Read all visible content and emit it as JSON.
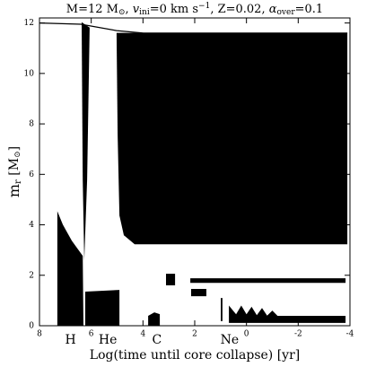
{
  "chart_data": {
    "type": "kippenhahn",
    "title": [
      "M=12 M",
      "⊙",
      ", ",
      "v",
      "ini",
      "=0 km s",
      "−1",
      ", Z=0.02, ",
      "α",
      "over",
      "=0.1"
    ],
    "y_label": [
      "m",
      "r",
      " [M",
      "⊙",
      "]"
    ],
    "x_label": "Log(time until core collapse) [yr]",
    "xlim": [
      8,
      -4
    ],
    "ylim": [
      0,
      12.2
    ],
    "xticks": [
      8,
      6,
      4,
      2,
      0,
      -2,
      -4
    ],
    "yticks": [
      0,
      2,
      4,
      6,
      8,
      10,
      12
    ],
    "color": "#000000",
    "phase_labels": [
      {
        "text": "H",
        "x": 6.8
      },
      {
        "text": "He",
        "x": 5.36
      },
      {
        "text": "C",
        "x": 3.46
      },
      {
        "text": "Ne",
        "x": 0.65
      }
    ],
    "mass_line": {
      "x": [
        8,
        6.4,
        5.02,
        3.98,
        -3.9
      ],
      "y": [
        12.0,
        11.95,
        11.7,
        11.6,
        11.6
      ]
    },
    "regions": [
      {
        "x": [
          5.02,
          -3.9,
          -3.9,
          4.32,
          4.74,
          4.91,
          4.98
        ],
        "y": [
          11.61,
          11.61,
          3.23,
          3.23,
          3.59,
          4.37,
          7.56
        ]
      },
      {
        "x": [
          6.37,
          6.06,
          6.16,
          6.27,
          6.33
        ],
        "y": [
          12.03,
          11.82,
          5.79,
          2.59,
          5.79
        ]
      },
      {
        "x": [
          7.31,
          7.1,
          6.75,
          6.33,
          6.3,
          7.31
        ],
        "y": [
          4.54,
          4.01,
          3.37,
          2.77,
          0,
          0
        ]
      },
      {
        "x": [
          6.23,
          4.91,
          4.91,
          6.23
        ],
        "y": [
          1.35,
          1.42,
          0,
          0
        ]
      },
      {
        "x": [
          3.8,
          3.56,
          3.35,
          3.35,
          3.8
        ],
        "y": [
          0.39,
          0.53,
          0.46,
          0,
          0
        ]
      },
      {
        "x": [
          3.11,
          2.76,
          2.76,
          3.11
        ],
        "y": [
          2.06,
          2.06,
          1.6,
          1.6
        ]
      },
      {
        "x": [
          2.14,
          1.55,
          1.55,
          2.14
        ],
        "y": [
          1.46,
          1.46,
          1.17,
          1.17
        ]
      },
      {
        "x": [
          2.17,
          -3.83,
          -3.83,
          2.17
        ],
        "y": [
          1.88,
          1.88,
          1.7,
          1.7
        ]
      },
      {
        "x": [
          0.68,
          0.4,
          0.2,
          0.0,
          -0.2,
          -0.4,
          -0.6,
          -0.8,
          -1.0,
          -1.2,
          -3.83,
          -3.83,
          0.68
        ],
        "y": [
          0.8,
          0.45,
          0.8,
          0.45,
          0.75,
          0.42,
          0.7,
          0.4,
          0.6,
          0.39,
          0.39,
          0.11,
          0.11
        ]
      },
      {
        "x": [
          0.99,
          0.93,
          0.93,
          0.99
        ],
        "y": [
          1.1,
          1.1,
          0.18,
          0.18
        ]
      }
    ]
  }
}
